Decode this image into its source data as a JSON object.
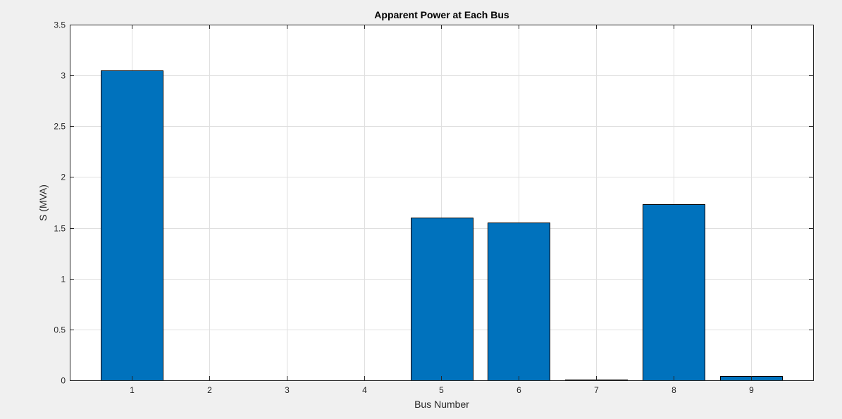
{
  "chart_data": {
    "type": "bar",
    "title": "Apparent Power at Each Bus",
    "xlabel": "Bus Number",
    "ylabel": "S (MVA)",
    "categories": [
      "1",
      "2",
      "3",
      "4",
      "5",
      "6",
      "7",
      "8",
      "9"
    ],
    "x": [
      1,
      2,
      3,
      4,
      5,
      6,
      7,
      8,
      9
    ],
    "values": [
      3.05,
      0,
      0,
      0,
      1.6,
      1.555,
      0.008,
      1.735,
      0.045
    ],
    "xlim": [
      0.2,
      9.8
    ],
    "ylim": [
      0,
      3.5
    ],
    "yticks": [
      0,
      0.5,
      1,
      1.5,
      2,
      2.5,
      3,
      3.5
    ],
    "ytick_labels": [
      "0",
      "0.5",
      "1",
      "1.5",
      "2",
      "2.5",
      "3",
      "3.5"
    ],
    "bar_width": 0.8,
    "grid": true,
    "bar_color": "#0072bd",
    "bar_edge_color": "#000000",
    "grid_color": "#dfdfdf",
    "axes_color": "#262626",
    "figure_background": "#f0f0f0",
    "axes_background": "#ffffff"
  }
}
